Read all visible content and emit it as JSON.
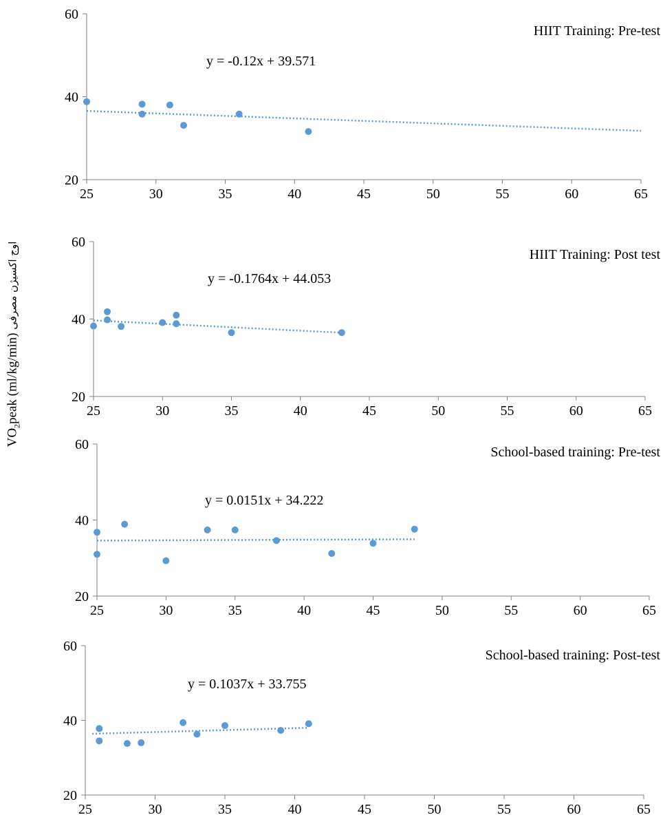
{
  "figure": {
    "ylabel_en": "VO2peak (ml/kg/min)",
    "ylabel_fa": "اوج اکسیژن مصرفی",
    "accent_color": "#5b9bd5"
  },
  "chart_data": [
    {
      "type": "scatter",
      "title": "HIIT Training: Pre-test",
      "trendline_label": "y = -0.12x + 39.571",
      "trendline": {
        "slope": -0.12,
        "intercept": 39.571,
        "x_range": [
          25,
          65
        ]
      },
      "xlim": [
        25,
        65
      ],
      "ylim": [
        20,
        60
      ],
      "xticks": [
        25,
        30,
        35,
        40,
        45,
        50,
        55,
        60,
        65
      ],
      "yticks": [
        20,
        40,
        60
      ],
      "grid": false,
      "points": [
        [
          25,
          38.8
        ],
        [
          29,
          38.2
        ],
        [
          29,
          35.8
        ],
        [
          31,
          38.0
        ],
        [
          32,
          33.1
        ],
        [
          36,
          35.8
        ],
        [
          41,
          31.6
        ]
      ]
    },
    {
      "type": "scatter",
      "title": "HIIT Training: Post test",
      "trendline_label": "y = -0.1764x + 44.053",
      "trendline": {
        "slope": -0.1764,
        "intercept": 44.053,
        "x_range": [
          25,
          43
        ]
      },
      "xlim": [
        25,
        65
      ],
      "ylim": [
        20,
        60
      ],
      "xticks": [
        25,
        30,
        35,
        40,
        45,
        50,
        55,
        60,
        65
      ],
      "yticks": [
        20,
        40,
        60
      ],
      "grid": false,
      "points": [
        [
          25,
          38.2
        ],
        [
          26,
          41.9
        ],
        [
          26,
          39.8
        ],
        [
          27,
          38.1
        ],
        [
          30,
          39.1
        ],
        [
          31,
          41.0
        ],
        [
          31,
          38.8
        ],
        [
          35,
          36.5
        ],
        [
          43,
          36.5
        ]
      ]
    },
    {
      "type": "scatter",
      "title": "School-based training: Pre-test",
      "trendline_label": "y = 0.0151x + 34.222",
      "trendline": {
        "slope": 0.0151,
        "intercept": 34.222,
        "x_range": [
          25,
          48
        ]
      },
      "xlim": [
        25,
        65
      ],
      "ylim": [
        20,
        60
      ],
      "xticks": [
        25,
        30,
        35,
        40,
        45,
        50,
        55,
        60,
        65
      ],
      "yticks": [
        20,
        40,
        60
      ],
      "grid": false,
      "points": [
        [
          25,
          36.8
        ],
        [
          25,
          31.0
        ],
        [
          27,
          38.9
        ],
        [
          30,
          29.3
        ],
        [
          33,
          37.4
        ],
        [
          35,
          37.4
        ],
        [
          38,
          34.6
        ],
        [
          42,
          31.2
        ],
        [
          45,
          33.9
        ],
        [
          48,
          37.6
        ]
      ]
    },
    {
      "type": "scatter",
      "title": "School-based training: Post-test",
      "trendline_label": "y = 0.1037x + 33.755",
      "trendline": {
        "slope": 0.1037,
        "intercept": 33.755,
        "x_range": [
          25.5,
          41
        ]
      },
      "xlim": [
        25,
        65
      ],
      "ylim": [
        20,
        60
      ],
      "xticks": [
        25,
        30,
        35,
        40,
        45,
        50,
        55,
        60,
        65
      ],
      "yticks": [
        20,
        40,
        60
      ],
      "grid": false,
      "points": [
        [
          26,
          37.8
        ],
        [
          26,
          34.5
        ],
        [
          28,
          33.8
        ],
        [
          29,
          34.0
        ],
        [
          32,
          39.4
        ],
        [
          33,
          36.3
        ],
        [
          35,
          38.6
        ],
        [
          39,
          37.3
        ],
        [
          41,
          39.1
        ]
      ]
    }
  ]
}
